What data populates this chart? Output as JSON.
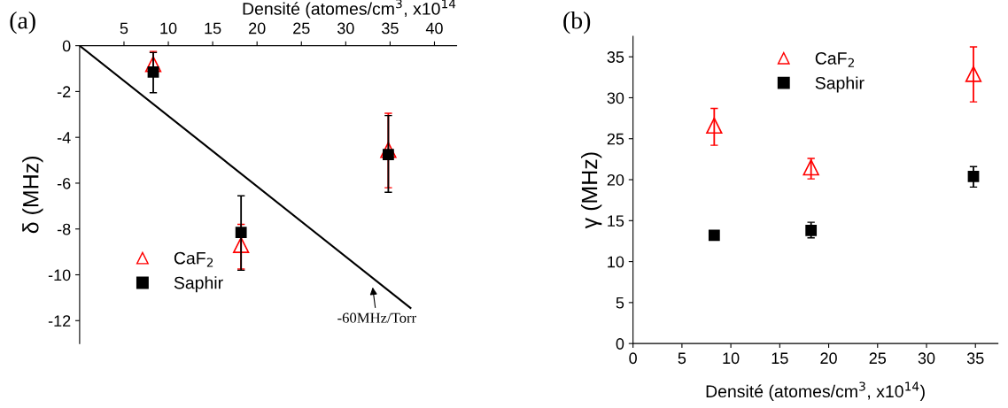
{
  "chart_data": [
    {
      "type": "scatter",
      "title": "(a)",
      "xlabel": "Densité (atomes/cm$^{3}$, x10$^{14}$",
      "ylabel": "δ (MHz)",
      "xlim": [
        0,
        42.5
      ],
      "xticks": [
        5,
        10,
        15,
        20,
        25,
        30,
        35,
        40
      ],
      "ylim": [
        -13,
        0
      ],
      "yticks": [
        0,
        -2,
        -4,
        -6,
        -8,
        -10,
        -12
      ],
      "grid": false,
      "legend": "bottom left",
      "series": [
        {
          "type": "line",
          "color": "#000000",
          "x": [
            0,
            37.3
          ],
          "values": [
            0,
            -11.45
          ],
          "marker": "none",
          "line_style": "solid"
        },
        {
          "name": "CaF$_{2}$",
          "color": "#ff0000",
          "marker": "triangle",
          "x": [
            8.3,
            18.2,
            34.8
          ],
          "values": [
            -0.8,
            -8.7,
            -4.55
          ],
          "errors": [
            [
              -1.3,
              -0.25
            ],
            [
              -9.75,
              -7.8
            ],
            [
              -6.2,
              -2.95
            ]
          ]
        },
        {
          "name": "Saphir",
          "color": "#000000",
          "marker": "square",
          "x": [
            8.3,
            18.2,
            34.8
          ],
          "values": [
            -1.15,
            -8.15,
            -4.75
          ],
          "errors": [
            [
              -2.05,
              -0.3
            ],
            [
              -9.8,
              -6.55
            ],
            [
              -6.4,
              -3.05
            ]
          ]
        }
      ],
      "annotations": [
        "-60MHz/Torr"
      ]
    },
    {
      "type": "scatter",
      "title": "(b)",
      "xlabel": "Densité (atomes/cm$^{3}$, x10$^{14}$)",
      "ylabel": "γ (MHz)",
      "xlim": [
        0,
        37.3
      ],
      "xticks": [
        0,
        5,
        10,
        15,
        20,
        25,
        30,
        35
      ],
      "ylim": [
        0,
        37.5
      ],
      "yticks": [
        0,
        5,
        10,
        15,
        20,
        25,
        30,
        35
      ],
      "grid": false,
      "legend": "top",
      "series": [
        {
          "name": "CaF$_{2}$",
          "color": "#ff0000",
          "marker": "triangle",
          "x": [
            8.3,
            18.2,
            34.8
          ],
          "values": [
            26.6,
            21.5,
            32.9
          ],
          "errors": [
            [
              24.2,
              28.7
            ],
            [
              20.1,
              22.6
            ],
            [
              29.5,
              36.2
            ]
          ]
        },
        {
          "name": "Saphir",
          "color": "#000000",
          "marker": "square",
          "x": [
            8.3,
            18.2,
            34.8
          ],
          "values": [
            13.2,
            13.8,
            20.4
          ],
          "errors": [
            null,
            [
              12.9,
              14.8
            ],
            [
              19.1,
              21.6
            ]
          ]
        }
      ]
    }
  ]
}
